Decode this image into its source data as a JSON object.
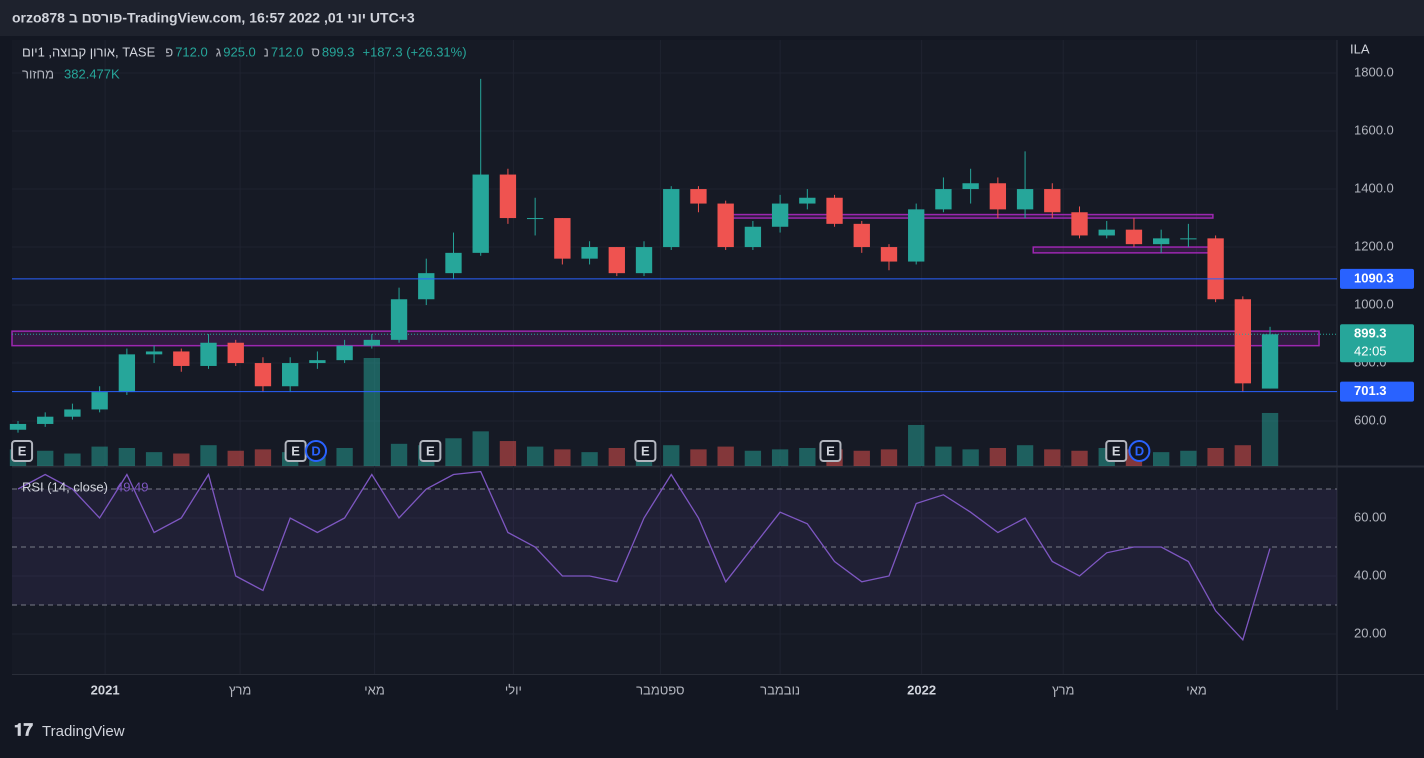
{
  "header": "orzo878 פורסם ב-TradingView.com, יוני 01, 2022 16:57 UTC+3",
  "footer": "TradingView",
  "chart_data": {
    "type": "candlestick",
    "currency": "ILA",
    "legend": {
      "symbol": "אורון קבוצה, 1יום, TASE",
      "ohlc": [
        {
          "prefix": "פ",
          "value": "712.0"
        },
        {
          "prefix": "ג",
          "value": "925.0"
        },
        {
          "prefix": "נ",
          "value": "712.0"
        },
        {
          "prefix": "ס",
          "value": "899.3"
        }
      ],
      "change": "+187.3 (+26.31%)",
      "volume_name": "מחזור"
    },
    "up_color": "#26a69a",
    "down_color": "#ef5350",
    "open": [
      570,
      590,
      615,
      640,
      700,
      830,
      840,
      790,
      870,
      800,
      720,
      800,
      810,
      860,
      880,
      1020,
      1110,
      1180,
      1450,
      1300,
      1300,
      1160,
      1200,
      1110,
      1200,
      1400,
      1350,
      1200,
      1270,
      1350,
      1370,
      1280,
      1200,
      1150,
      1330,
      1400,
      1420,
      1330,
      1400,
      1320,
      1240,
      1260,
      1210,
      1230,
      1230,
      1020,
      712
    ],
    "high": [
      600,
      630,
      660,
      720,
      850,
      860,
      850,
      900,
      880,
      820,
      820,
      840,
      880,
      900,
      1060,
      1160,
      1250,
      1780,
      1470,
      1370,
      1300,
      1220,
      1200,
      1220,
      1410,
      1410,
      1360,
      1290,
      1380,
      1400,
      1380,
      1290,
      1210,
      1350,
      1440,
      1470,
      1440,
      1530,
      1420,
      1340,
      1290,
      1300,
      1260,
      1280,
      1240,
      1030,
      925
    ],
    "low": [
      560,
      580,
      605,
      630,
      690,
      800,
      770,
      780,
      790,
      700,
      700,
      780,
      800,
      850,
      870,
      1000,
      1090,
      1170,
      1280,
      1240,
      1140,
      1140,
      1100,
      1100,
      1190,
      1320,
      1190,
      1190,
      1250,
      1330,
      1270,
      1180,
      1120,
      1140,
      1320,
      1350,
      1300,
      1300,
      1300,
      1230,
      1230,
      1200,
      1180,
      1200,
      1010,
      700,
      712
    ],
    "close": [
      590,
      615,
      640,
      700,
      830,
      840,
      790,
      870,
      800,
      720,
      800,
      810,
      860,
      880,
      1020,
      1110,
      1180,
      1450,
      1300,
      1300,
      1160,
      1200,
      1110,
      1200,
      1400,
      1350,
      1200,
      1270,
      1350,
      1370,
      1280,
      1200,
      1150,
      1330,
      1400,
      1420,
      1330,
      1400,
      1320,
      1240,
      1260,
      1210,
      1230,
      1230,
      1020,
      730,
      899.3
    ],
    "countdown": "42:05",
    "volume": [
      120,
      110,
      90,
      140,
      130,
      100,
      90,
      150,
      110,
      120,
      100,
      110,
      130,
      779,
      160,
      150,
      200,
      250,
      180,
      140,
      120,
      100,
      130,
      110,
      150,
      120,
      140,
      110,
      120,
      130,
      120,
      110,
      120,
      296,
      140,
      120,
      130,
      150,
      120,
      110,
      130,
      120,
      100,
      110,
      130,
      150,
      382.477
    ],
    "volume_labels": {
      "46": "382.477K"
    },
    "volume_ylim": [
      0,
      1082
    ],
    "xlim": [
      -0.22,
      48.46
    ],
    "xticks": [
      {
        "value": 3.2,
        "label": "2021"
      },
      {
        "value": 8.16,
        "label": "מרץ"
      },
      {
        "value": 13.1,
        "label": "מאי"
      },
      {
        "value": 18.2,
        "label": "יולי"
      },
      {
        "value": 23.6,
        "label": "ספטמבר"
      },
      {
        "value": 28.0,
        "label": "נובמבר"
      },
      {
        "value": 33.2,
        "label": "2022"
      },
      {
        "value": 38.4,
        "label": "מרץ"
      },
      {
        "value": 43.3,
        "label": "מאי"
      }
    ],
    "ylim": [
      445,
      1914
    ],
    "yticks": [
      {
        "value": 600,
        "label": "600.0"
      },
      {
        "value": 800,
        "label": "800.0"
      },
      {
        "value": 1000,
        "label": "1000.0"
      },
      {
        "value": 1200,
        "label": "1200.0"
      },
      {
        "value": 1400,
        "label": "1400.0"
      },
      {
        "value": 1600,
        "label": "1600.0"
      },
      {
        "value": 1800,
        "label": "1800.0"
      }
    ],
    "hlines": [
      {
        "value": 1090.3,
        "color": "#2962ff"
      },
      {
        "value": 701.3,
        "color": "#2962ff"
      }
    ],
    "zones": [
      {
        "y": [
          860,
          910
        ],
        "x": [
          -0.22,
          47.8
        ]
      },
      {
        "y": [
          1300,
          1312
        ],
        "x": [
          26.2,
          43.9
        ]
      },
      {
        "y": [
          1180,
          1200
        ],
        "x": [
          37.3,
          43.9
        ]
      }
    ],
    "zone_color": "#9c27b0",
    "events": [
      {
        "label": "E",
        "x": 0.15
      },
      {
        "label": "E",
        "x": 10.2
      },
      {
        "label": "D",
        "x": 10.95
      },
      {
        "label": "E",
        "x": 15.15
      },
      {
        "label": "E",
        "x": 23.05
      },
      {
        "label": "E",
        "x": 29.85
      },
      {
        "label": "E",
        "x": 40.35
      },
      {
        "label": "D",
        "x": 41.2
      }
    ],
    "rsi": {
      "name": "RSI (14, close)",
      "color": "#7e57c2",
      "values": [
        70,
        75,
        70,
        60,
        75,
        55,
        60,
        75,
        40,
        35,
        60,
        55,
        60,
        75,
        60,
        70,
        75,
        76,
        55,
        50,
        40,
        40,
        38,
        60,
        75,
        60,
        38,
        50,
        62,
        58,
        45,
        38,
        40,
        65,
        68,
        62,
        55,
        60,
        45,
        40,
        48,
        50,
        50,
        45,
        28,
        18,
        49.49
      ],
      "ylim": [
        6.2,
        77.6
      ],
      "yticks": [
        {
          "value": 20,
          "label": "20.00"
        },
        {
          "value": 40,
          "label": "40.00"
        },
        {
          "value": 60,
          "label": "60.00"
        }
      ],
      "bands": [
        30,
        50,
        70
      ]
    }
  }
}
